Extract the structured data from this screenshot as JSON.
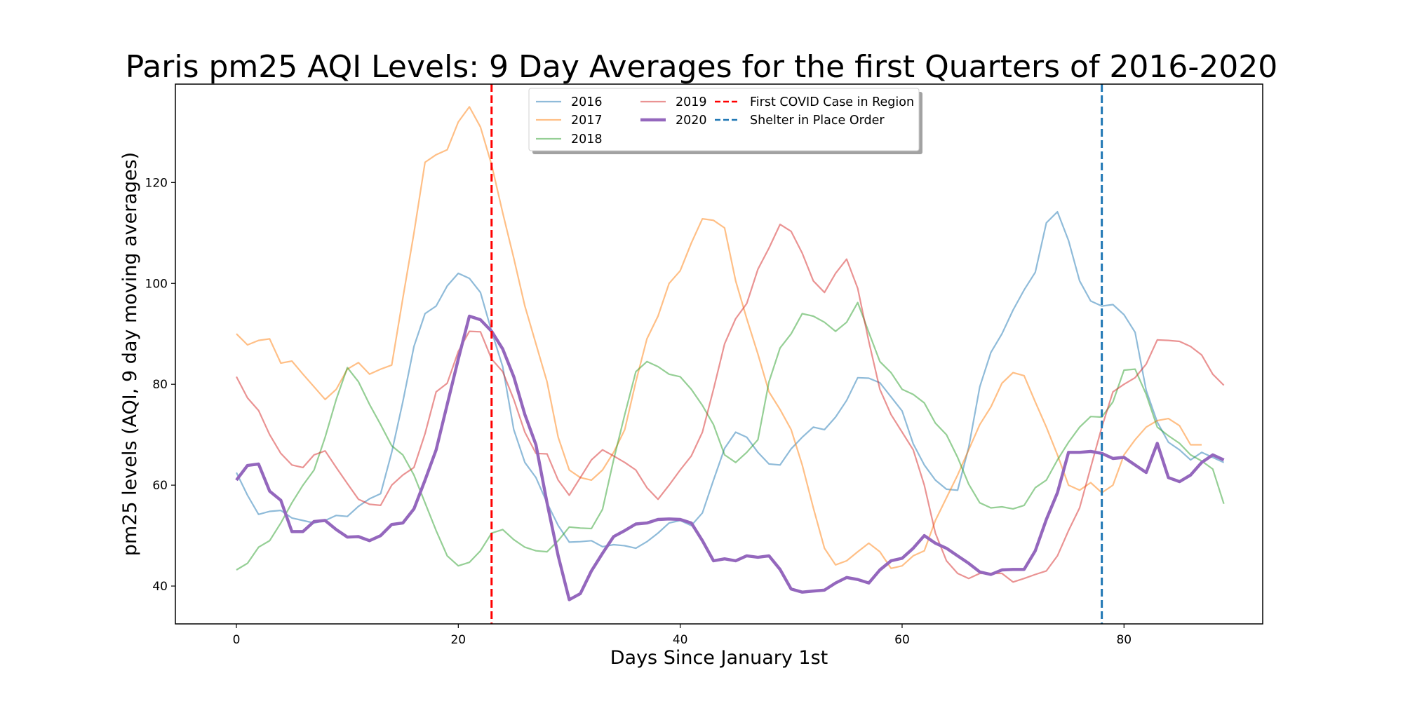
{
  "chart_data": {
    "type": "line",
    "title": "Paris pm25 AQI Levels: 9 Day Averages for the first Quarters of 2016-2020",
    "xlabel": "Days Since January 1st",
    "ylabel": "pm25 levels (AQI, 9 day moving averages)",
    "xlim": [
      -5.5,
      92.5
    ],
    "ylim": [
      32.5,
      139.5
    ],
    "xticks": [
      0,
      20,
      40,
      60,
      80
    ],
    "yticks": [
      40,
      60,
      80,
      100,
      120
    ],
    "grid": false,
    "legend": {
      "location": "upper-center",
      "columns": 3
    },
    "series": [
      {
        "name": "2016",
        "color": "#1f77b4",
        "opacity": 0.5,
        "width": 2.2,
        "values": [
          62.5,
          58,
          54.2,
          54.8,
          55,
          53.5,
          53,
          52.5,
          53,
          54,
          53.8,
          55.8,
          57.3,
          58.3,
          66.5,
          76.5,
          87.5,
          94,
          95.5,
          99.5,
          102,
          101,
          98.2,
          90.5,
          83.5,
          71,
          64.5,
          61.5,
          56.5,
          52,
          48.7,
          48.8,
          49,
          47.8,
          48.2,
          48,
          47.5,
          48.8,
          50.5,
          52.5,
          53,
          52,
          54.5,
          61,
          67.3,
          70.5,
          69.5,
          66.5,
          64.2,
          64,
          67.2,
          69.5,
          71.5,
          71,
          73.5,
          76.8,
          81.3,
          81.2,
          80.3,
          77.5,
          74.7,
          68.2,
          64,
          61,
          59.2,
          59,
          67.5,
          79.5,
          86.3,
          90,
          94.7,
          98.7,
          102.2,
          112,
          114.2,
          108.5,
          100.5,
          96.5,
          95.5,
          95.8,
          93.8,
          90.3,
          78.8,
          72.5,
          68.5,
          67,
          65,
          66.5,
          65.5,
          64.5
        ]
      },
      {
        "name": "2017",
        "color": "#ff7f0e",
        "opacity": 0.5,
        "width": 2.2,
        "values": [
          90,
          87.8,
          88.7,
          89,
          84.2,
          84.6,
          82,
          79.5,
          77,
          79,
          83,
          84.3,
          82,
          83,
          83.8,
          97,
          110,
          124,
          125.5,
          126.5,
          132,
          135,
          131,
          123.5,
          114,
          105,
          95.5,
          88,
          80.5,
          69.5,
          63,
          61.5,
          61,
          63,
          66.5,
          71,
          80.5,
          89,
          93.5,
          100,
          102.5,
          108,
          112.8,
          112.5,
          111,
          100.5,
          93,
          86,
          78.5,
          75,
          71,
          64,
          55.5,
          47.5,
          44.2,
          45,
          46.8,
          48.5,
          46.8,
          43.5,
          44,
          46,
          47,
          53,
          57.5,
          62,
          67,
          72,
          75.5,
          80.2,
          82.3,
          81.7,
          76.5,
          71.5,
          66,
          60,
          59,
          60.5,
          58.5,
          60,
          66,
          69,
          71.5,
          72.8,
          73.2,
          71.8,
          68,
          68
        ]
      },
      {
        "name": "2018",
        "color": "#2ca02c",
        "opacity": 0.5,
        "width": 2.2,
        "values": [
          43.2,
          44.5,
          47.7,
          49,
          52.5,
          56.5,
          60,
          63,
          69.5,
          77,
          83.3,
          80.5,
          76,
          72,
          67.8,
          66,
          62,
          56.5,
          51,
          46,
          44,
          44.7,
          47,
          50.5,
          51.2,
          49.2,
          47.7,
          47,
          46.8,
          49,
          51.7,
          51.5,
          51.4,
          55.2,
          65,
          74,
          82.5,
          84.5,
          83.5,
          82,
          81.5,
          79,
          75.8,
          72,
          66,
          64.5,
          66.5,
          69,
          80.5,
          87.2,
          90,
          94,
          93.5,
          92.3,
          90.5,
          92.3,
          96.2,
          90.3,
          84.5,
          82.3,
          79,
          78,
          76.3,
          72.3,
          70,
          65.5,
          60.2,
          56.5,
          55.5,
          55.7,
          55.3,
          56,
          59.5,
          61,
          65,
          68.5,
          71.5,
          73.6,
          73.5,
          76.5,
          82.8,
          83,
          78,
          71.5,
          69.8,
          68.3,
          66,
          64.8,
          63.2,
          56.3
        ]
      },
      {
        "name": "2019",
        "color": "#d62728",
        "opacity": 0.5,
        "width": 2.2,
        "values": [
          81.5,
          77.3,
          74.8,
          70,
          66.3,
          64,
          63.5,
          66,
          66.8,
          63.5,
          60.3,
          57.2,
          56.2,
          56,
          60,
          62,
          63.5,
          70.2,
          78.5,
          80.2,
          86.5,
          90.5,
          90.4,
          85,
          82.5,
          77,
          70.5,
          66.3,
          66.2,
          61,
          58,
          61.5,
          65,
          67,
          65.8,
          64.5,
          63,
          59.5,
          57.2,
          60,
          63,
          65.8,
          70.5,
          79,
          88,
          93,
          96,
          102.8,
          107,
          111.7,
          110.3,
          106,
          100.5,
          98.2,
          102,
          104.8,
          99,
          88.5,
          79,
          74,
          70.5,
          67,
          60,
          50.5,
          45,
          42.5,
          41.5,
          42.5,
          42.5,
          42.5,
          40.8,
          41.5,
          42.3,
          43,
          46,
          51,
          55.5,
          63.5,
          71.5,
          78.5,
          80,
          81.3,
          84,
          88.8,
          88.7,
          88.5,
          87.5,
          85.8,
          82,
          79.8
        ]
      },
      {
        "name": "2020",
        "color": "#9467bd",
        "opacity": 1.0,
        "width": 4.4,
        "values": [
          61,
          63.9,
          64.2,
          58.8,
          57,
          50.8,
          50.8,
          52.8,
          53,
          51.2,
          49.7,
          49.8,
          49,
          50,
          52.2,
          52.5,
          55.3,
          61,
          67,
          76,
          85,
          93.5,
          92.8,
          90.5,
          87,
          81.5,
          74,
          68,
          56.5,
          46,
          37.3,
          38.5,
          43,
          46.5,
          49.8,
          51,
          52.3,
          52.5,
          53.2,
          53.3,
          53.2,
          52.5,
          49,
          45,
          45.4,
          45,
          46,
          45.7,
          46,
          43.3,
          39.4,
          38.8,
          39,
          39.2,
          40.6,
          41.7,
          41.3,
          40.6,
          43.2,
          45,
          45.5,
          47.5,
          50,
          48.5,
          47.5,
          46,
          44.5,
          42.8,
          42.3,
          43.2,
          43.3,
          43.3,
          47,
          53.2,
          58.5,
          66.5,
          66.5,
          66.7,
          66.3,
          65.3,
          65.5,
          64,
          62.5,
          68.3,
          61.5,
          60.7,
          62,
          64.5,
          66,
          65
        ]
      }
    ],
    "vlines": [
      {
        "name": "First COVID Case in Region",
        "x": 23,
        "color": "#ff0000"
      },
      {
        "name": "Shelter in Place Order",
        "x": 78,
        "color": "#1f77b4"
      }
    ]
  }
}
